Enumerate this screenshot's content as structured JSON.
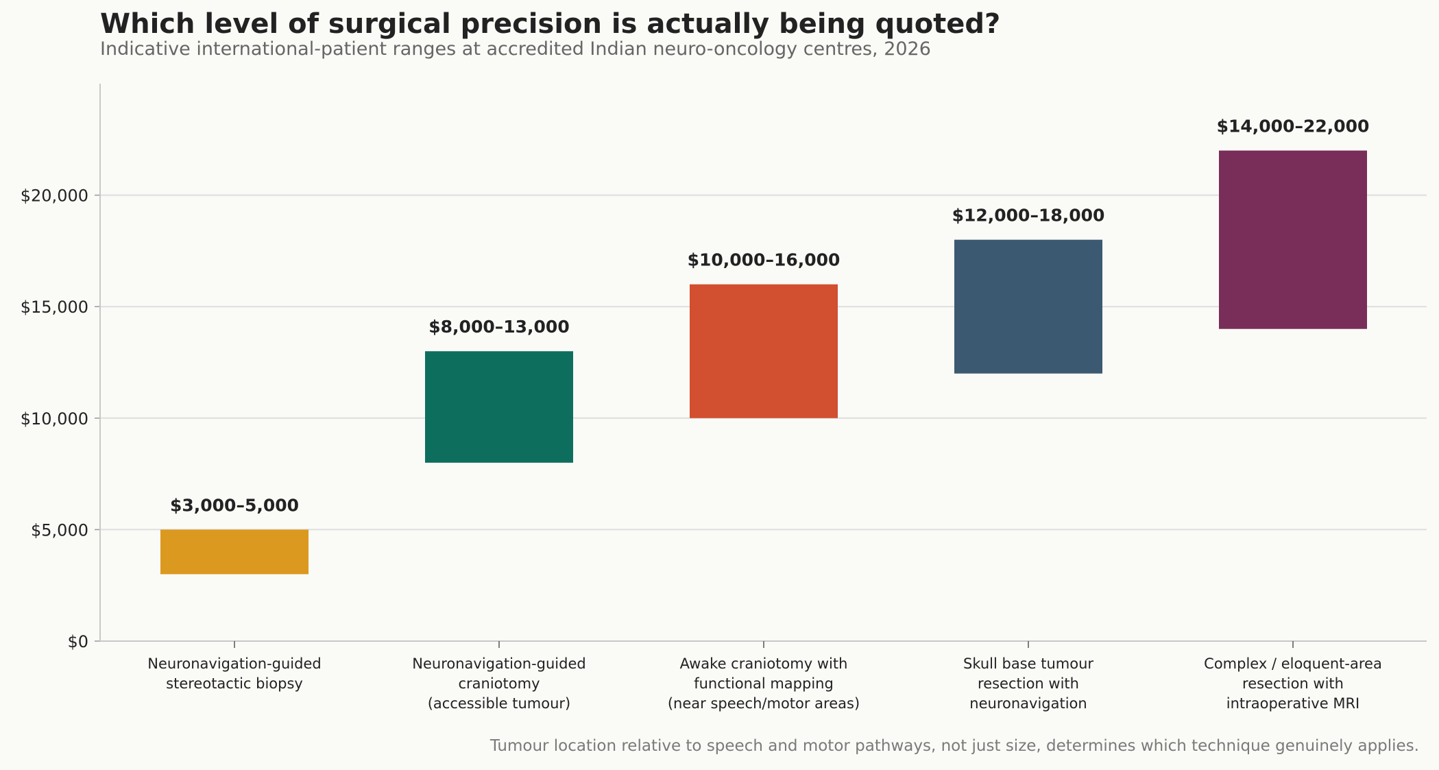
{
  "chart_data": {
    "type": "bar",
    "title": "Which level of surgical precision is actually being quoted?",
    "subtitle": "Indicative international-patient ranges at accredited Indian neuro-oncology centres, 2026",
    "footnote": "Tumour location relative to speech and motor pathways, not just size, determines which technique genuinely applies.",
    "xlabel": "",
    "ylabel": "",
    "ylim": [
      0,
      25000
    ],
    "yticks": [
      0,
      5000,
      10000,
      15000,
      20000
    ],
    "ytick_labels": [
      "$0",
      "$5,000",
      "$10,000",
      "$15,000",
      "$20,000"
    ],
    "grid": true,
    "categories": [
      [
        "Neuronavigation-guided",
        "stereotactic biopsy"
      ],
      [
        "Neuronavigation-guided",
        "craniotomy",
        "(accessible tumour)"
      ],
      [
        "Awake craniotomy with",
        "functional mapping",
        "(near speech/motor areas)"
      ],
      [
        "Skull base tumour",
        "resection with",
        "neuronavigation"
      ],
      [
        "Complex / eloquent-area",
        "resection with",
        "intraoperative MRI"
      ]
    ],
    "ranges": [
      {
        "low": 3000,
        "high": 5000,
        "label": "$3,000–5,000",
        "color": "#db991f"
      },
      {
        "low": 8000,
        "high": 13000,
        "label": "$8,000–13,000",
        "color": "#0e6e5e"
      },
      {
        "low": 10000,
        "high": 16000,
        "label": "$10,000–16,000",
        "color": "#d24f2f"
      },
      {
        "low": 12000,
        "high": 18000,
        "label": "$12,000–18,000",
        "color": "#3b5a72"
      },
      {
        "low": 14000,
        "high": 22000,
        "label": "$14,000–22,000",
        "color": "#782e58"
      }
    ]
  }
}
